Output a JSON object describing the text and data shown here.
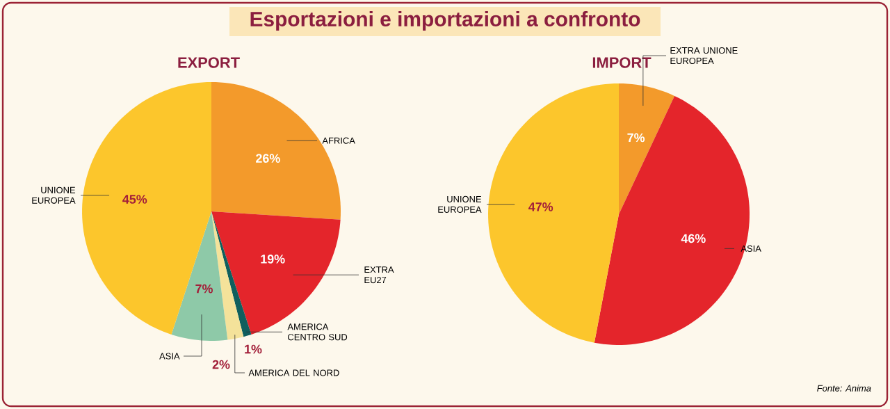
{
  "chart_data": [
    {
      "type": "pie",
      "title": "Esportazioni e importazioni a confronto",
      "subtitle": "EXPORT",
      "categories": [
        "AFRICA",
        "EXTRA EU27",
        "AMERICA CENTRO SUD",
        "AMERICA DEL NORD",
        "ASIA",
        "UNIONE EUROPEA"
      ],
      "values": [
        26,
        19,
        1,
        2,
        7,
        45
      ],
      "colors": [
        "#f39a2b",
        "#e4252b",
        "#0f5f5e",
        "#f4e29a",
        "#8ec9a8",
        "#fcc62c"
      ],
      "value_labels": [
        "26%",
        "19%",
        "1%",
        "2%",
        "7%",
        "45%"
      ],
      "data_labels": true
    },
    {
      "type": "pie",
      "title": "IMPORT",
      "categories": [
        "EXTRA UNIONE EUROPEA",
        "ASIA",
        "UNIONE EUROPEA"
      ],
      "values": [
        7,
        46,
        47
      ],
      "colors": [
        "#f39a2b",
        "#e4252b",
        "#fcc62c"
      ],
      "value_labels": [
        "7%",
        "46%",
        "47%"
      ],
      "data_labels": true,
      "annotations": [
        "Fonte: Anima"
      ]
    }
  ]
}
